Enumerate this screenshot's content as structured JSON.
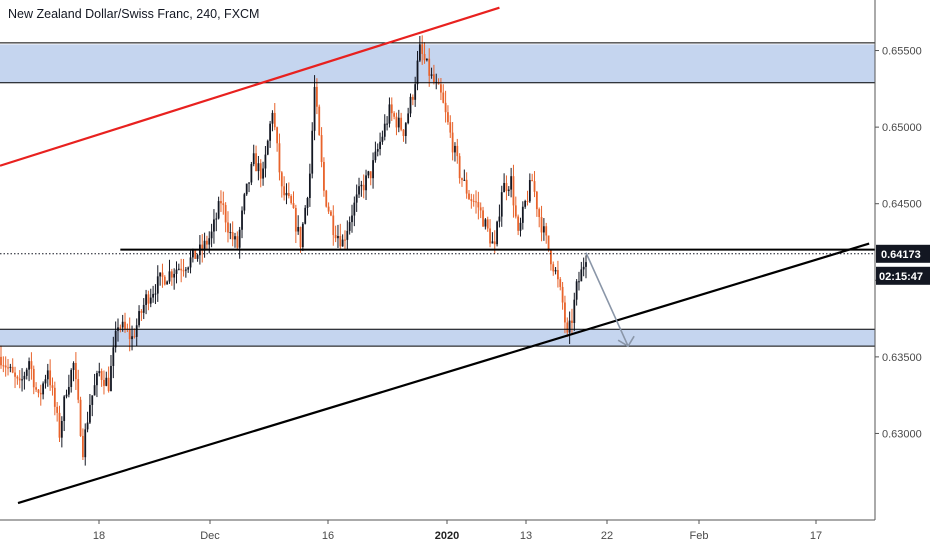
{
  "header": {
    "title": "New Zealand Dollar/Swiss Franc, 240, FXCM"
  },
  "chart_data": {
    "type": "candlestick",
    "symbol": "New Zealand Dollar/Swiss Franc",
    "interval": "240",
    "source": "FXCM",
    "y_axis": {
      "position": "right",
      "ticks": [
        0.655,
        0.65,
        0.645,
        0.64,
        0.635,
        0.63
      ],
      "tick_labels": [
        "0.65500",
        "0.65000",
        "0.64500",
        "0.64000",
        "0.63500",
        "0.63000"
      ],
      "range": [
        0.62435,
        0.6583
      ]
    },
    "x_axis": {
      "tick_labels": [
        "18",
        "Dec",
        "16",
        "2020",
        "13",
        "22",
        "Feb",
        "17"
      ],
      "bold_labels": [
        "2020"
      ]
    },
    "current_price": {
      "value": 0.64173,
      "label": "0.64173",
      "countdown": "02:15:47",
      "tag_color": "#131722"
    },
    "colors": {
      "up_candle": "#131722",
      "down_candle": "#e8632b",
      "zone_fill": "#c5d5ef",
      "trendline_red": "#e8211f",
      "trendline_black": "#000000",
      "arrow": "#8a96a8"
    },
    "zones": [
      {
        "name": "resistance zone",
        "from": 0.6529,
        "to": 0.6554
      },
      {
        "name": "support zone",
        "from": 0.6357,
        "to": 0.6368
      }
    ],
    "horizontal_lines": [
      {
        "name": "resistance line",
        "price": 0.6555,
        "span": "full"
      },
      {
        "name": "resistance line",
        "price": 0.6529,
        "span": "full"
      },
      {
        "name": "neckline",
        "price": 0.642,
        "span": "partial"
      },
      {
        "name": "support line",
        "price": 0.6368,
        "span": "full"
      },
      {
        "name": "support line",
        "price": 0.6357,
        "span": "full"
      }
    ],
    "trendlines": [
      {
        "name": "upper channel",
        "color": "red",
        "p1": {
          "bar": 0,
          "price": 0.6475
        },
        "p2": {
          "bar": 213,
          "price": 0.6578
        }
      },
      {
        "name": "rising support",
        "color": "black",
        "p1": {
          "bar": 6,
          "price": 0.6254
        },
        "p2": {
          "bar": 371,
          "price": 0.6424
        }
      }
    ],
    "projection_arrow": {
      "from": {
        "bar": 250,
        "price": 0.6418
      },
      "to": {
        "bar": 268,
        "price": 0.6357
      }
    },
    "bars_visible": 250,
    "price_path_anchors": [
      [
        0,
        0.635
      ],
      [
        8,
        0.633
      ],
      [
        12,
        0.6348
      ],
      [
        16,
        0.6322
      ],
      [
        20,
        0.6343
      ],
      [
        25,
        0.63
      ],
      [
        28,
        0.633
      ],
      [
        31,
        0.6345
      ],
      [
        35,
        0.629
      ],
      [
        38,
        0.632
      ],
      [
        42,
        0.634
      ],
      [
        46,
        0.6332
      ],
      [
        50,
        0.6372
      ],
      [
        56,
        0.6362
      ],
      [
        62,
        0.6388
      ],
      [
        68,
        0.64
      ],
      [
        74,
        0.6407
      ],
      [
        80,
        0.6412
      ],
      [
        86,
        0.642
      ],
      [
        90,
        0.643
      ],
      [
        94,
        0.6452
      ],
      [
        98,
        0.643
      ],
      [
        101,
        0.6422
      ],
      [
        104,
        0.6452
      ],
      [
        108,
        0.6478
      ],
      [
        112,
        0.6468
      ],
      [
        116,
        0.6512
      ],
      [
        120,
        0.6458
      ],
      [
        124,
        0.6448
      ],
      [
        128,
        0.6425
      ],
      [
        132,
        0.647
      ],
      [
        134,
        0.6525
      ],
      [
        138,
        0.6458
      ],
      [
        142,
        0.6435
      ],
      [
        146,
        0.6425
      ],
      [
        150,
        0.6445
      ],
      [
        154,
        0.646
      ],
      [
        158,
        0.647
      ],
      [
        162,
        0.649
      ],
      [
        166,
        0.651
      ],
      [
        172,
        0.6498
      ],
      [
        176,
        0.6522
      ],
      [
        179,
        0.655
      ],
      [
        184,
        0.6532
      ],
      [
        188,
        0.652
      ],
      [
        192,
        0.6495
      ],
      [
        196,
        0.647
      ],
      [
        200,
        0.6455
      ],
      [
        204,
        0.6448
      ],
      [
        208,
        0.6432
      ],
      [
        211,
        0.642
      ],
      [
        214,
        0.646
      ],
      [
        218,
        0.6465
      ],
      [
        221,
        0.6428
      ],
      [
        224,
        0.645
      ],
      [
        227,
        0.6465
      ],
      [
        230,
        0.6442
      ],
      [
        234,
        0.642
      ],
      [
        237,
        0.6405
      ],
      [
        240,
        0.6385
      ],
      [
        242,
        0.6362
      ],
      [
        244,
        0.6375
      ],
      [
        246,
        0.6395
      ],
      [
        248,
        0.6405
      ],
      [
        250,
        0.6417
      ]
    ]
  }
}
